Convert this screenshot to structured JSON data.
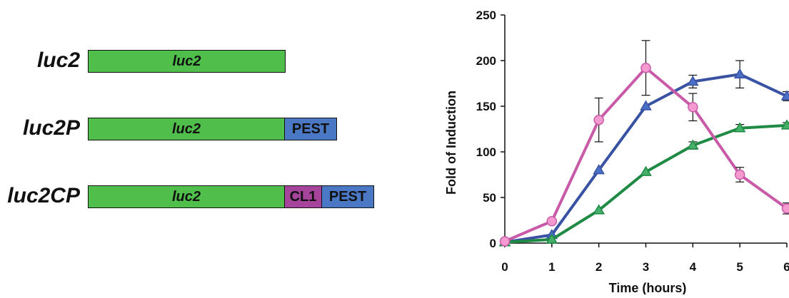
{
  "constructs": [
    {
      "label": "luc2",
      "segments": [
        {
          "name": "luc2",
          "text": "luc2",
          "color": "#4fbe4a",
          "italic": true
        }
      ]
    },
    {
      "label": "luc2P",
      "segments": [
        {
          "name": "luc2",
          "text": "luc2",
          "color": "#4fbe4a",
          "italic": true
        },
        {
          "name": "pest",
          "text": "PEST",
          "color": "#4a78c4",
          "italic": false
        }
      ]
    },
    {
      "label": "luc2CP",
      "segments": [
        {
          "name": "luc2",
          "text": "luc2",
          "color": "#4fbe4a",
          "italic": true
        },
        {
          "name": "cl1",
          "text": "CL1",
          "color": "#a5449a",
          "italic": false
        },
        {
          "name": "pest",
          "text": "PEST",
          "color": "#4a78c4",
          "italic": false
        }
      ]
    }
  ],
  "chart_data": {
    "type": "line",
    "title": "",
    "xlabel": "Time (hours)",
    "ylabel": "Fold of Induction",
    "x": [
      0,
      1,
      2,
      3,
      4,
      5,
      6
    ],
    "xlim": [
      0,
      6
    ],
    "ylim": [
      0,
      250
    ],
    "yticks": [
      0,
      50,
      100,
      150,
      200,
      250
    ],
    "grid": false,
    "legend": "none",
    "series": [
      {
        "values": [
          2,
          24,
          135,
          192,
          149,
          75,
          38
        ],
        "errors": [
          0,
          0,
          24,
          30,
          15,
          8,
          6
        ],
        "color": "#c85aa8",
        "fill": "#f49ad0",
        "marker": "circle"
      },
      {
        "values": [
          1,
          9,
          80,
          150,
          177,
          185,
          161
        ],
        "errors": [
          0,
          0,
          0,
          0,
          7,
          15,
          5
        ],
        "color": "#3a52a4",
        "fill": "#4a6fc6",
        "marker": "triangle"
      },
      {
        "values": [
          1,
          4,
          36,
          78,
          107,
          126,
          129
        ],
        "errors": [
          0,
          0,
          0,
          0,
          4,
          4,
          3
        ],
        "color": "#1f8a44",
        "fill": "#44b06a",
        "marker": "triangle"
      }
    ]
  }
}
